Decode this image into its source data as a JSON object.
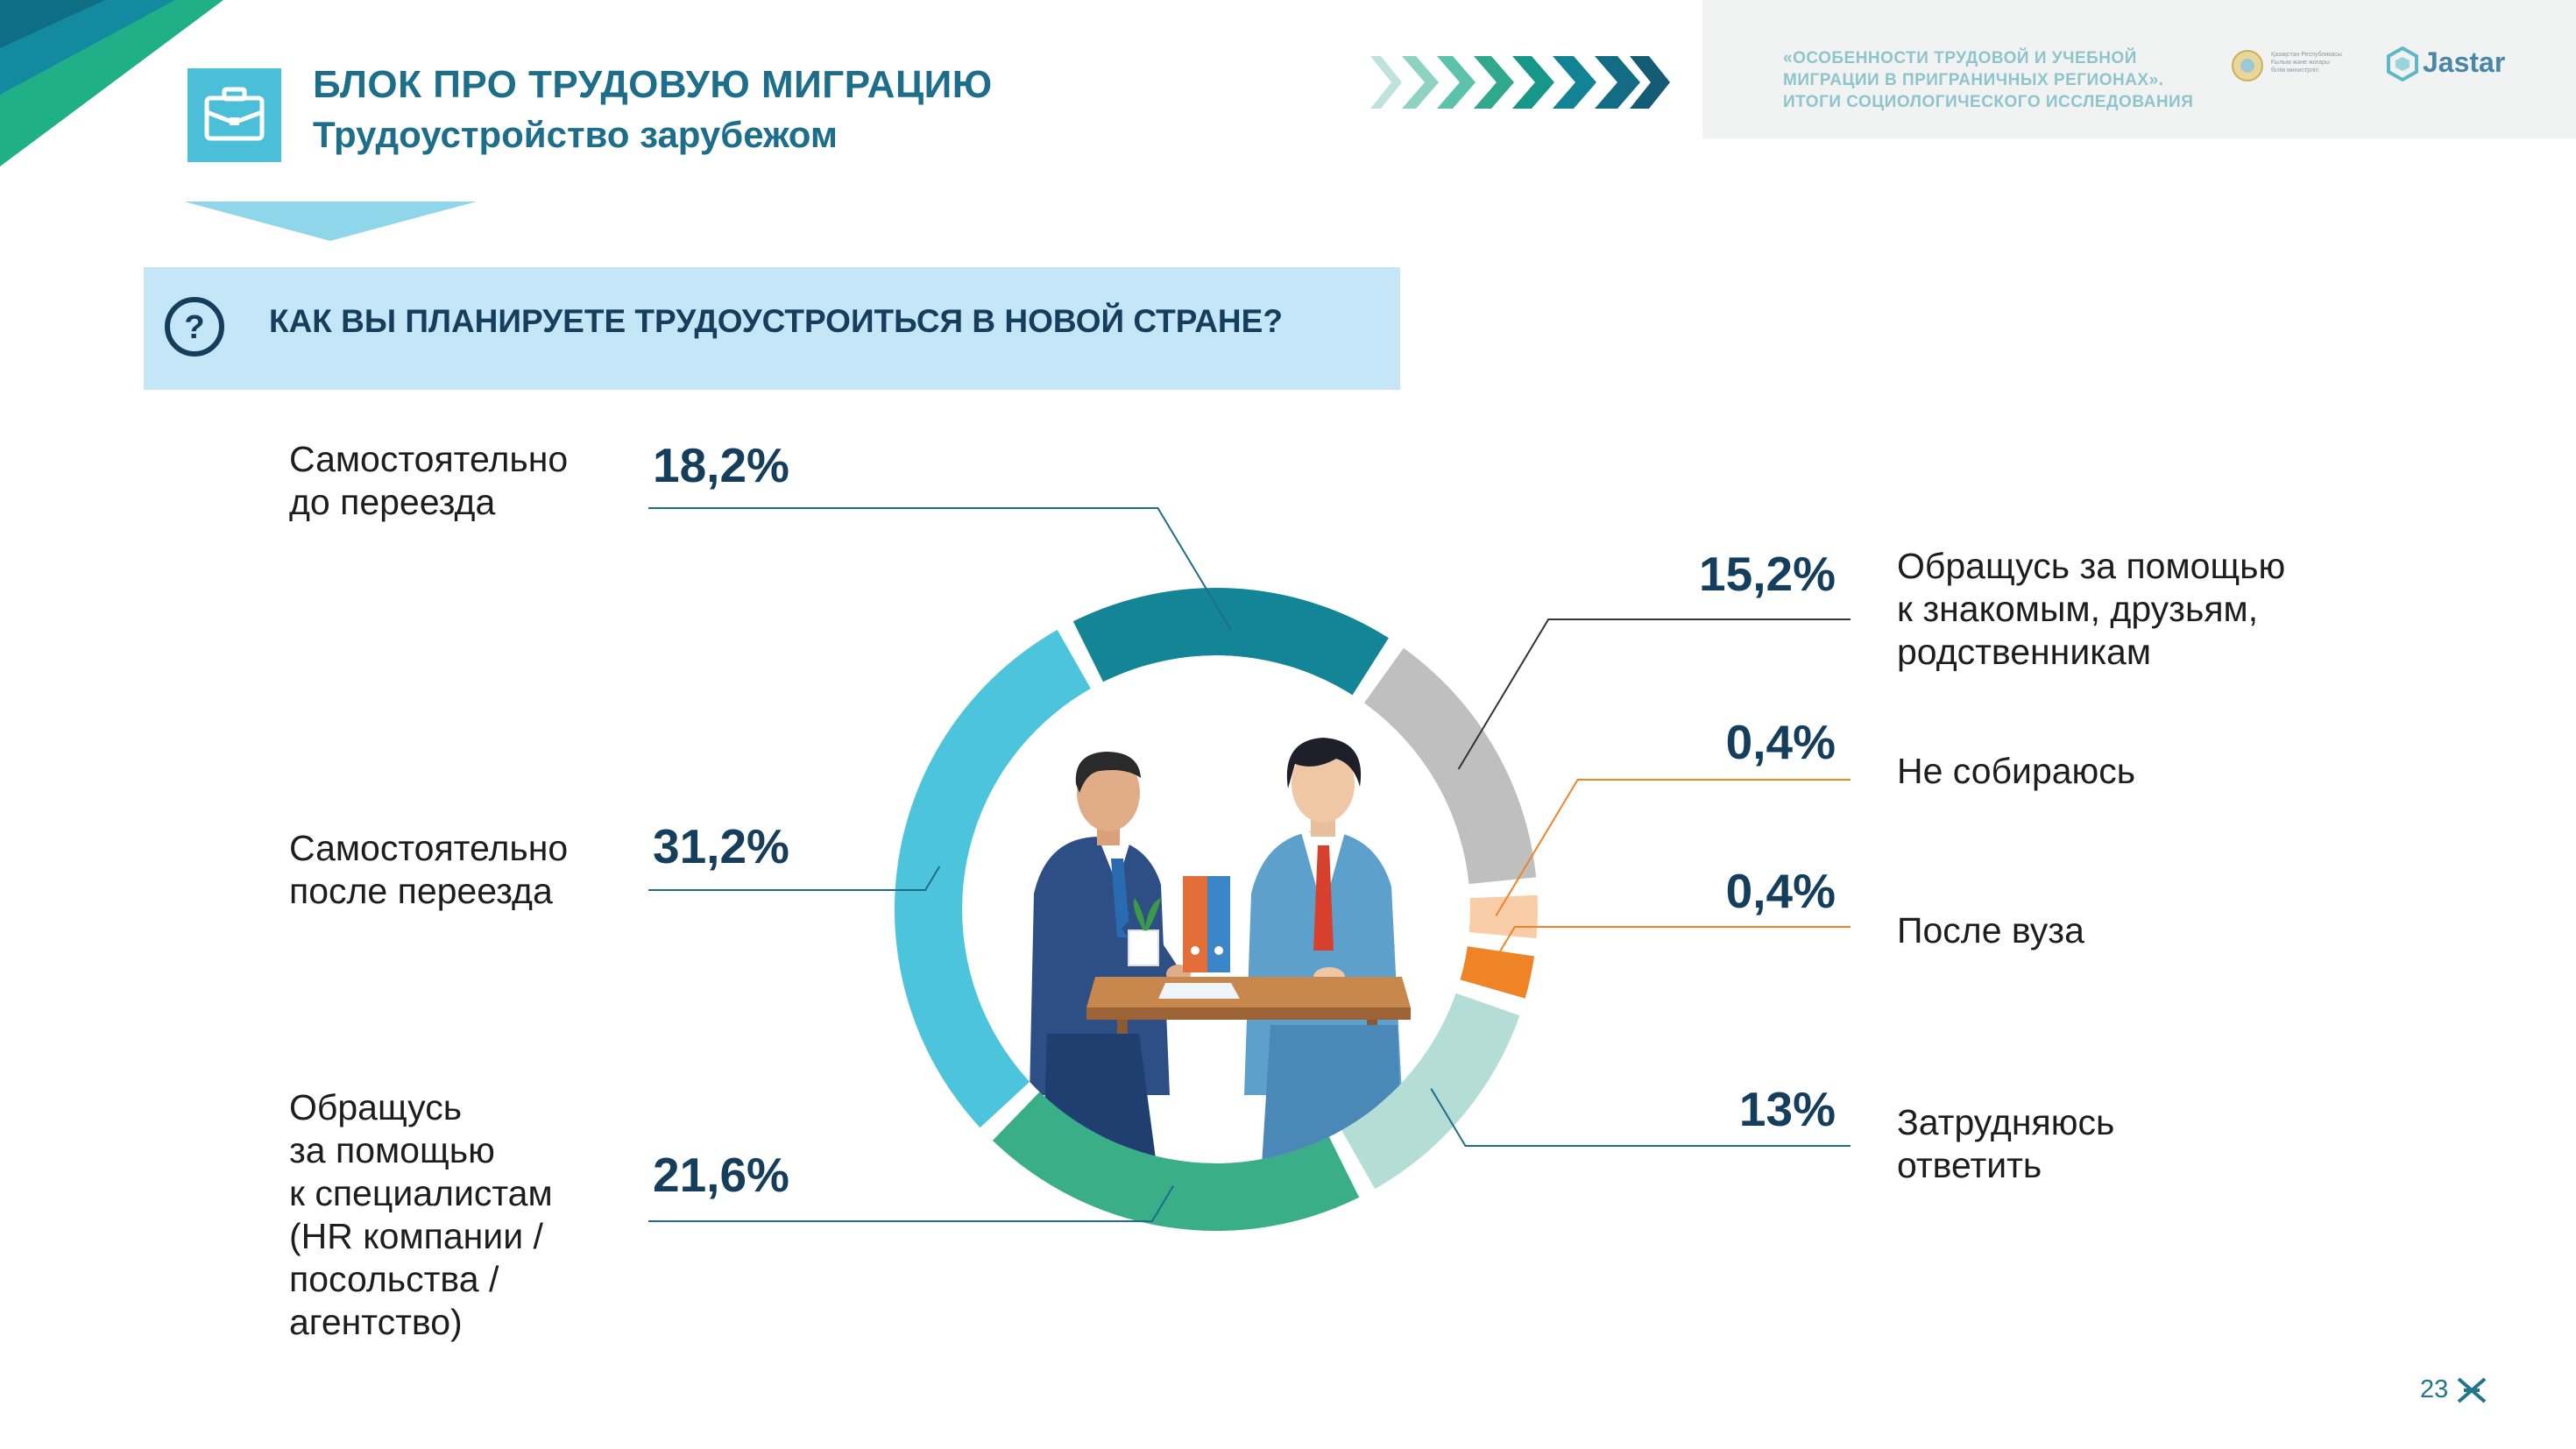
{
  "header": {
    "block_title": "БЛОК ПРО ТРУДОВУЮ МИГРАЦИЮ",
    "block_subtitle": "Трудоустройство зарубежом",
    "report_title_lines": [
      "«ОСОБЕННОСТИ ТРУДОВОЙ И УЧЕБНОЙ",
      "МИГРАЦИИ В ПРИГРАНИЧНЫХ РЕГИОНАХ».",
      "ИТОГИ СОЦИОЛОГИЧЕСКОГО ИССЛЕДОВАНИЯ"
    ],
    "gov_text_lines": [
      "Қазақстан Республикасы",
      "Ғылым және жоғары",
      "білім министрлігі"
    ],
    "logo_text": "Jastar",
    "icon": "briefcase-icon"
  },
  "question": {
    "text": "КАК ВЫ ПЛАНИРУЕТЕ ТРУДОУСТРОИТЬСЯ В НОВОЙ СТРАНЕ?",
    "icon": "question-icon"
  },
  "page_number": "23",
  "colors": {
    "accent_dark": "#1d6e8a",
    "navy": "#153d5c",
    "question_bar": "#c5e6f6"
  },
  "chart_data": {
    "type": "pie",
    "title": "КАК ВЫ ПЛАНИРУЕТЕ ТРУДОУСТРОИТЬСЯ В НОВОЙ СТРАНЕ?",
    "slices": [
      {
        "label_lines": [
          "Самостоятельно",
          "до переезда"
        ],
        "value": 18.2,
        "value_label": "18,2%",
        "color": "#138596"
      },
      {
        "label_lines": [
          "Обращусь за помощью",
          "к знакомым, друзьям,",
          "родственникам"
        ],
        "value": 15.2,
        "value_label": "15,2%",
        "color": "#bfbfbf"
      },
      {
        "label_lines": [
          "Не собираюсь"
        ],
        "value": 0.4,
        "value_label": "0,4%",
        "color": "#f8cda8"
      },
      {
        "label_lines": [
          "После вуза"
        ],
        "value": 0.4,
        "value_label": "0,4%",
        "color": "#ef8427"
      },
      {
        "label_lines": [
          "Затрудняюсь",
          "ответить"
        ],
        "value": 13,
        "value_label": "13%",
        "color": "#b3ddd5"
      },
      {
        "label_lines": [
          "Обращусь",
          "за помощью",
          "к специалистам",
          "(HR компании /",
          "посольства /",
          "агентство)"
        ],
        "value": 21.6,
        "value_label": "21,6%",
        "color": "#3aae87"
      },
      {
        "label_lines": [
          "Самостоятельно",
          "после переезда"
        ],
        "value": 31.2,
        "value_label": "31,2%",
        "color": "#4cc4dc"
      }
    ]
  }
}
